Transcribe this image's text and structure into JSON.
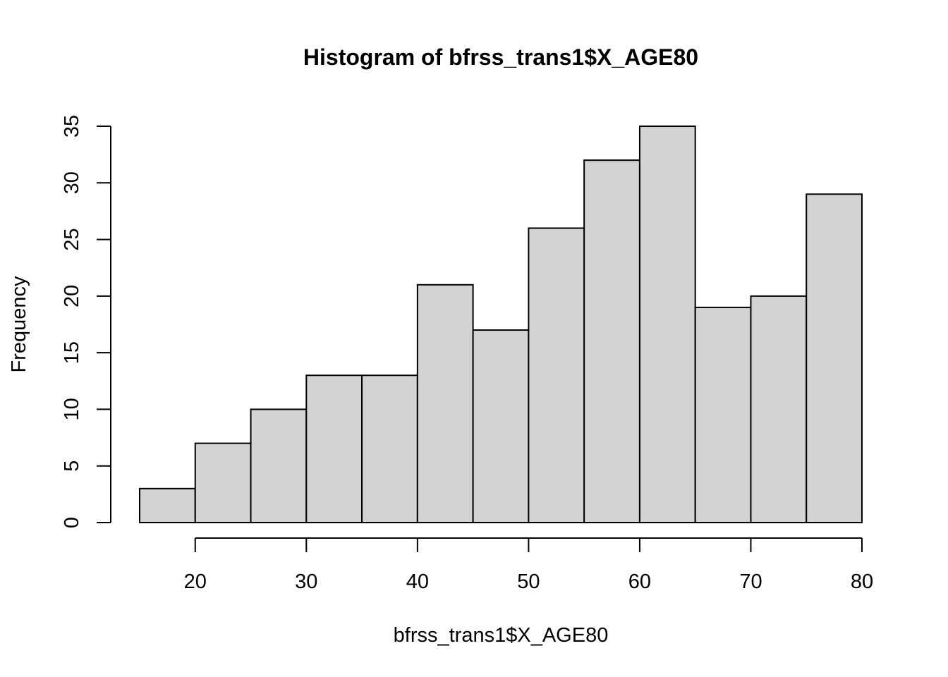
{
  "chart_data": {
    "type": "bar",
    "title": "Histogram of bfrss_trans1$X_AGE80",
    "xlabel": "bfrss_trans1$X_AGE80",
    "ylabel": "Frequency",
    "bins": [
      {
        "start": 15,
        "end": 20,
        "count": 3
      },
      {
        "start": 20,
        "end": 25,
        "count": 7
      },
      {
        "start": 25,
        "end": 30,
        "count": 10
      },
      {
        "start": 30,
        "end": 35,
        "count": 13
      },
      {
        "start": 35,
        "end": 40,
        "count": 13
      },
      {
        "start": 40,
        "end": 45,
        "count": 21
      },
      {
        "start": 45,
        "end": 50,
        "count": 17
      },
      {
        "start": 50,
        "end": 55,
        "count": 26
      },
      {
        "start": 55,
        "end": 60,
        "count": 32
      },
      {
        "start": 60,
        "end": 65,
        "count": 35
      },
      {
        "start": 65,
        "end": 70,
        "count": 19
      },
      {
        "start": 70,
        "end": 75,
        "count": 20
      },
      {
        "start": 75,
        "end": 80,
        "count": 29
      }
    ],
    "x_ticks": [
      "20",
      "30",
      "40",
      "50",
      "60",
      "70",
      "80"
    ],
    "y_ticks": [
      "0",
      "5",
      "10",
      "15",
      "20",
      "25",
      "30",
      "35"
    ],
    "xlim": [
      15,
      80
    ],
    "ylim": [
      0,
      35
    ],
    "grid": false,
    "bar_color": "#d3d3d3"
  }
}
